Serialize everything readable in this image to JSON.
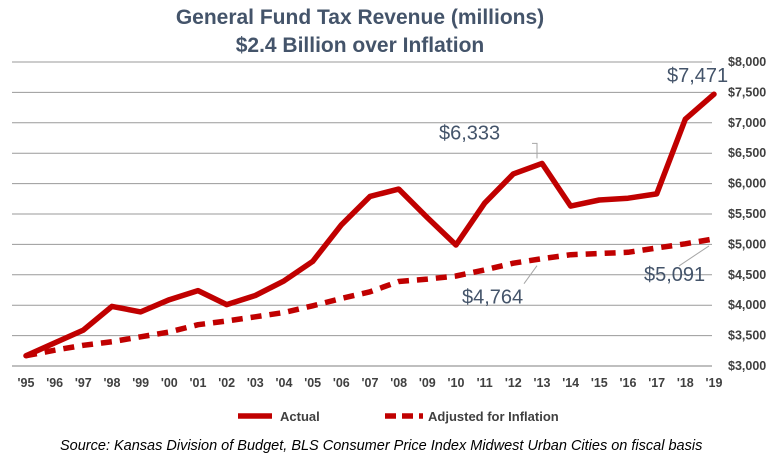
{
  "chart_data": {
    "type": "line",
    "title": "General Fund Tax Revenue (millions)",
    "subtitle": "$2.4 Billion over Inflation",
    "categories": [
      "'95",
      "'96",
      "'97",
      "'98",
      "'99",
      "'00",
      "'01",
      "'02",
      "'03",
      "'04",
      "'05",
      "'06",
      "'07",
      "'08",
      "'09",
      "'10",
      "'11",
      "'12",
      "'13",
      "'14",
      "'15",
      "'16",
      "'17",
      "'18",
      "'19"
    ],
    "series": [
      {
        "name": "Actual",
        "color": "#c00000",
        "style": "solid",
        "values": [
          3170,
          3380,
          3590,
          3980,
          3890,
          4090,
          4240,
          4010,
          4160,
          4400,
          4720,
          5320,
          5790,
          5910,
          5440,
          4990,
          5680,
          6160,
          6333,
          5630,
          5730,
          5760,
          5830,
          7060,
          7471
        ]
      },
      {
        "name": "Adjusted for Inflation",
        "color": "#c00000",
        "style": "dashed",
        "values": [
          3170,
          3260,
          3340,
          3400,
          3480,
          3560,
          3680,
          3740,
          3810,
          3880,
          3990,
          4110,
          4220,
          4390,
          4430,
          4480,
          4580,
          4690,
          4764,
          4830,
          4850,
          4870,
          4940,
          5010,
          5091
        ]
      }
    ],
    "ylim": [
      3000,
      8000
    ],
    "yticks": [
      "$3,000",
      "$3,500",
      "$4,000",
      "$4,500",
      "$5,000",
      "$5,500",
      "$6,000",
      "$6,500",
      "$7,000",
      "$7,500",
      "$8,000"
    ],
    "grid": true,
    "legend_position": "bottom",
    "annotations": [
      {
        "text": "$7,471",
        "series": 0,
        "index": 24
      },
      {
        "text": "$6,333",
        "series": 0,
        "index": 18
      },
      {
        "text": "$4,764",
        "series": 1,
        "index": 18
      },
      {
        "text": "$5,091",
        "series": 1,
        "index": 24
      }
    ]
  },
  "source": "Source: Kansas Division of Budget, BLS Consumer Price Index Midwest Urban Cities on fiscal basis"
}
